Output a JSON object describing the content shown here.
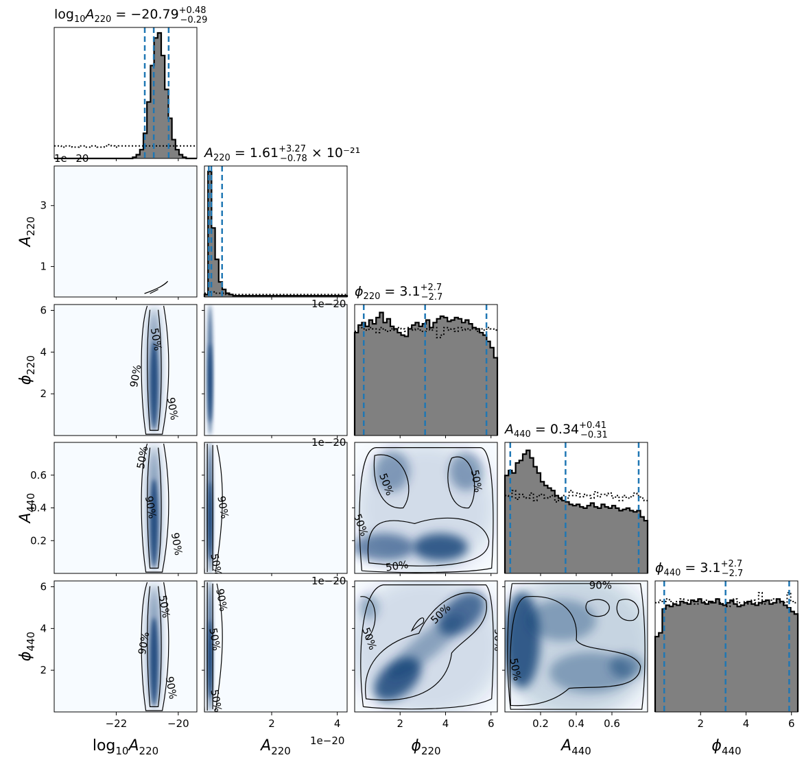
{
  "chart_data": {
    "type": "corner",
    "parameters": [
      {
        "key": "logA220",
        "label_base": "log",
        "label_sub_pre": "10",
        "label_mid": "A",
        "label_sub": "220",
        "range": [
          -24,
          -19.4
        ],
        "ticks": [
          -22,
          -20
        ],
        "tick_labels": [
          "−22",
          "−20"
        ],
        "offset_text": "1e−20",
        "title": {
          "lhs": "log",
          "lhs_sub": "10",
          "lhs2": "A",
          "lhs2_sub": "220",
          "eq": " = −20.79",
          "sup": "+0.48",
          "sub": "−0.29",
          "tail": ""
        },
        "quantiles": [
          -21.08,
          -20.79,
          -20.31
        ],
        "hist": [
          0,
          0,
          0,
          0,
          0,
          0,
          0,
          0,
          0,
          0,
          0,
          0,
          0,
          0,
          0,
          0,
          0,
          0,
          0,
          0,
          0,
          0,
          0.01,
          0.03,
          0.07,
          0.2,
          0.45,
          0.74,
          0.96,
          1.0,
          0.82,
          0.55,
          0.32,
          0.15,
          0.07,
          0.03,
          0.01,
          0,
          0,
          0
        ],
        "prior": [
          0.1,
          0.1,
          0.09,
          0.1,
          0.1,
          0.09,
          0.09,
          0.1,
          0.1,
          0.09,
          0.1,
          0.1,
          0.09,
          0.09,
          0.1,
          0.11,
          0.1,
          0.09,
          0.1,
          0.1,
          0.1,
          0.1,
          0.1,
          0.1,
          0.1,
          0.1,
          0.1,
          0.1,
          0.1,
          0.1,
          0.1,
          0.1,
          0.1,
          0.1,
          0.1,
          0.1,
          0.1,
          0.1,
          0.1,
          0.1
        ]
      },
      {
        "key": "A220",
        "label_mid": "A",
        "label_sub": "220",
        "range": [
          -0.05,
          4.3
        ],
        "ticks": [
          2,
          4
        ],
        "tick_labels": [
          "2",
          "4"
        ],
        "row_ticks": [
          1,
          3
        ],
        "row_tick_labels": [
          "1",
          "3"
        ],
        "offset_text": "1e−20",
        "title": {
          "lhs": "",
          "lhs_sub": "",
          "lhs2": "A",
          "lhs2_sub": "220",
          "eq": " = 1.61",
          "sup": "+3.27",
          "sub": "−0.78",
          "tail": " × 10⁻²¹"
        },
        "quantiles": [
          0.083,
          0.161,
          0.488
        ],
        "hist": [
          0.02,
          1.0,
          0.55,
          0.3,
          0.12,
          0.06,
          0.03,
          0.02,
          0.01,
          0.01,
          0.01,
          0.01,
          0.01,
          0.01,
          0.01,
          0.01,
          0.01,
          0.01,
          0.01,
          0.01,
          0.01,
          0.01,
          0.01,
          0.01,
          0.01,
          0.01,
          0.01,
          0.01,
          0.01,
          0.01,
          0.01,
          0.01,
          0.01,
          0.01,
          0.01,
          0.01,
          0.01,
          0.01,
          0.01,
          0.01
        ],
        "prior": [
          0.03,
          0.04,
          0.04,
          0.03,
          0.03,
          0.03,
          0.02,
          0.02,
          0.02,
          0.02,
          0.02,
          0.02,
          0.02,
          0.02,
          0.02,
          0.02,
          0.02,
          0.02,
          0.02,
          0.02,
          0.02,
          0.02,
          0.02,
          0.02,
          0.02,
          0.02,
          0.02,
          0.02,
          0.02,
          0.02,
          0.02,
          0.02,
          0.02,
          0.02,
          0.02,
          0.02,
          0.02,
          0.02,
          0.02,
          0.02
        ]
      },
      {
        "key": "phi220",
        "label_mid": "ϕ",
        "label_sub": "220",
        "range": [
          0,
          6.28
        ],
        "ticks": [
          2,
          4,
          6
        ],
        "tick_labels": [
          "2",
          "4",
          "6"
        ],
        "row_ticks": [
          2,
          4,
          6
        ],
        "row_tick_labels": [
          "2",
          "4",
          "6"
        ],
        "title": {
          "lhs": "",
          "lhs_sub": "",
          "lhs2": "ϕ",
          "lhs2_sub": "220",
          "eq": " = 3.1",
          "sup": "+2.7",
          "sub": "−2.7",
          "tail": ""
        },
        "quantiles": [
          0.4,
          3.1,
          5.8
        ],
        "hist": [
          0.82,
          0.88,
          0.9,
          0.87,
          0.92,
          0.89,
          0.94,
          0.98,
          0.9,
          0.93,
          0.87,
          0.85,
          0.82,
          0.8,
          0.79,
          0.85,
          0.88,
          0.9,
          0.87,
          0.89,
          0.92,
          0.86,
          0.9,
          0.93,
          0.95,
          0.94,
          0.91,
          0.92,
          0.94,
          0.93,
          0.9,
          0.92,
          0.89,
          0.86,
          0.85,
          0.82,
          0.8,
          0.75,
          0.7,
          0.62
        ],
        "prior": [
          0.83,
          0.86,
          0.85,
          0.84,
          0.86,
          0.85,
          0.82,
          0.86,
          0.84,
          0.83,
          0.85,
          0.84,
          0.86,
          0.85,
          0.83,
          0.86,
          0.84,
          0.85,
          0.84,
          0.83,
          0.85,
          0.84,
          0.86,
          0.78,
          0.8,
          0.86,
          0.84,
          0.85,
          0.83,
          0.86,
          0.84,
          0.85,
          0.84,
          0.86,
          0.83,
          0.85,
          0.84,
          0.86,
          0.85,
          0.84
        ]
      },
      {
        "key": "A440",
        "label_mid": "A",
        "label_sub": "440",
        "range": [
          0,
          0.8
        ],
        "ticks": [
          0.2,
          0.4,
          0.6
        ],
        "tick_labels": [
          "0.2",
          "0.4",
          "0.6"
        ],
        "row_ticks": [
          0.2,
          0.4,
          0.6
        ],
        "row_tick_labels": [
          "0.2",
          "0.4",
          "0.6"
        ],
        "title": {
          "lhs": "",
          "lhs_sub": "",
          "lhs2": "A",
          "lhs2_sub": "440",
          "eq": " = 0.34",
          "sup": "+0.41",
          "sub": "−0.31",
          "tail": ""
        },
        "quantiles": [
          0.03,
          0.34,
          0.75
        ],
        "hist": [
          0.78,
          0.82,
          0.8,
          0.88,
          0.9,
          0.95,
          0.98,
          0.92,
          0.85,
          0.8,
          0.73,
          0.7,
          0.68,
          0.66,
          0.62,
          0.6,
          0.58,
          0.57,
          0.55,
          0.54,
          0.55,
          0.53,
          0.52,
          0.54,
          0.56,
          0.53,
          0.52,
          0.55,
          0.53,
          0.52,
          0.54,
          0.52,
          0.5,
          0.51,
          0.52,
          0.5,
          0.49,
          0.5,
          0.45,
          0.42
        ],
        "prior": [
          0.62,
          0.6,
          0.66,
          0.59,
          0.63,
          0.61,
          0.6,
          0.64,
          0.58,
          0.62,
          0.63,
          0.6,
          0.61,
          0.62,
          0.57,
          0.59,
          0.62,
          0.6,
          0.66,
          0.62,
          0.64,
          0.61,
          0.63,
          0.62,
          0.6,
          0.65,
          0.61,
          0.63,
          0.62,
          0.64,
          0.6,
          0.62,
          0.58,
          0.62,
          0.6,
          0.61,
          0.64,
          0.62,
          0.6,
          0.58
        ]
      },
      {
        "key": "phi440",
        "label_mid": "ϕ",
        "label_sub": "440",
        "range": [
          0,
          6.28
        ],
        "ticks": [
          2,
          4,
          6
        ],
        "tick_labels": [
          "2",
          "4",
          "6"
        ],
        "row_ticks": [
          2,
          4,
          6
        ],
        "row_tick_labels": [
          "2",
          "4",
          "6"
        ],
        "title": {
          "lhs": "",
          "lhs_sub": "",
          "lhs2": "ϕ",
          "lhs2_sub": "440",
          "eq": " = 3.1",
          "sup": "+2.7",
          "sub": "−2.7",
          "tail": ""
        },
        "quantiles": [
          0.4,
          3.1,
          5.9
        ],
        "hist": [
          0.6,
          0.63,
          0.82,
          0.85,
          0.84,
          0.86,
          0.85,
          0.88,
          0.87,
          0.86,
          0.89,
          0.88,
          0.9,
          0.87,
          0.86,
          0.88,
          0.87,
          0.9,
          0.86,
          0.85,
          0.87,
          0.89,
          0.86,
          0.84,
          0.85,
          0.87,
          0.88,
          0.86,
          0.85,
          0.87,
          0.88,
          0.89,
          0.86,
          0.87,
          0.9,
          0.88,
          0.85,
          0.83,
          0.8,
          0.78
        ],
        "prior": [
          0.87,
          0.89,
          0.88,
          0.9,
          0.88,
          0.86,
          0.88,
          0.9,
          0.87,
          0.89,
          0.88,
          0.86,
          0.9,
          0.88,
          0.89,
          0.87,
          0.88,
          0.9,
          0.87,
          0.86,
          0.84,
          0.88,
          0.9,
          0.87,
          0.85,
          0.88,
          0.86,
          0.89,
          0.87,
          0.95,
          0.86,
          0.88,
          0.89,
          0.9,
          0.87,
          0.88,
          0.87,
          0.95,
          0.88,
          0.87
        ]
      }
    ],
    "contour_labels": [
      "50%",
      "90%"
    ],
    "colors": {
      "hist_fill": "#808080",
      "quantile_line": "#1f77b4",
      "density_light": "#f7fbff",
      "density_dark": "#08306b"
    }
  }
}
